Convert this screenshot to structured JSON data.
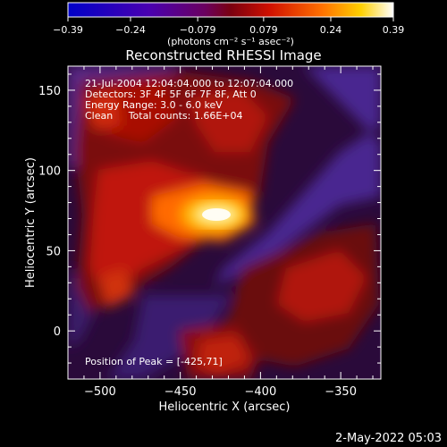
{
  "colorbar": {
    "ticks": [
      "-0.39",
      "-0.24",
      "-0.079",
      "0.079",
      "0.24",
      "0.39"
    ],
    "unit_label": "(photons cm⁻² s⁻¹ asec⁻²)",
    "range": [
      -0.39,
      0.39
    ]
  },
  "chart_data": {
    "type": "heatmap",
    "title": "Reconstructed RHESSI Image",
    "xlabel": "Heliocentric X (arcsec)",
    "ylabel": "Heliocentric Y (arcsec)",
    "xlim": [
      -520,
      -325
    ],
    "ylim": [
      -30,
      165
    ],
    "xticks": [
      -500,
      -450,
      -400,
      -350
    ],
    "yticks": [
      0,
      50,
      100,
      150
    ],
    "peak": [
      -425,
      71
    ],
    "annotations": [
      "21-Jul-2004 12:04:04.000 to 12:07:04.000",
      "Detectors: 3F 4F 5F 6F 7F 8F, Att 0",
      "Energy Range: 3.0 - 6.0 keV",
      "Clean     Total counts: 1.66E+04"
    ],
    "peak_label": "Position of Peak = [-425,71]"
  },
  "footer": {
    "date": "2-May-2022 05:03"
  }
}
